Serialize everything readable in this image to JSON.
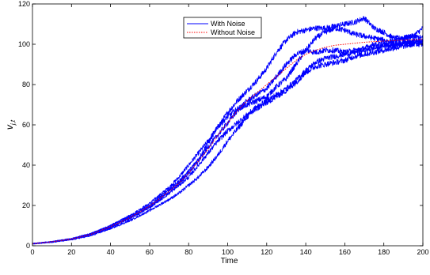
{
  "chart_data": {
    "type": "line",
    "xlabel": "Time",
    "ylabel": "v",
    "ylabel_sub": "j,t",
    "xlim": [
      0,
      200
    ],
    "ylim": [
      0,
      120
    ],
    "xticks": [
      0,
      20,
      40,
      60,
      80,
      100,
      120,
      140,
      160,
      180,
      200
    ],
    "yticks": [
      0,
      20,
      40,
      60,
      80,
      100,
      120
    ],
    "grid": false,
    "legend": {
      "placement": "top-center",
      "entries": [
        {
          "label": "With Noise",
          "color": "#0000ff",
          "style": "solid"
        },
        {
          "label": "Without Noise",
          "color": "#ff0000",
          "style": "dotted"
        }
      ]
    },
    "series": [
      {
        "group": "With Noise",
        "color": "#0000ff",
        "x": [
          0,
          10,
          20,
          30,
          40,
          50,
          60,
          70,
          75,
          80,
          85,
          90,
          95,
          100,
          105,
          110,
          115,
          120,
          125,
          130,
          135,
          140,
          145,
          150,
          155,
          160,
          165,
          170,
          175,
          180,
          185,
          190,
          195,
          200
        ],
        "y": [
          1,
          2,
          3.5,
          6,
          10,
          15,
          21,
          29,
          34,
          40,
          46,
          52,
          59,
          66,
          72,
          77,
          82,
          88,
          96,
          102,
          106,
          107,
          108,
          108,
          109,
          110,
          111,
          113,
          108,
          106,
          103,
          103,
          104,
          108
        ]
      },
      {
        "group": "With Noise",
        "color": "#0000ff",
        "x": [
          0,
          10,
          20,
          30,
          40,
          50,
          60,
          70,
          75,
          80,
          85,
          90,
          95,
          100,
          105,
          110,
          115,
          120,
          125,
          130,
          135,
          140,
          145,
          150,
          155,
          160,
          165,
          170,
          175,
          180,
          185,
          190,
          195,
          200
        ],
        "y": [
          1,
          2,
          3.5,
          6,
          10,
          14.5,
          20,
          28,
          32,
          37,
          43,
          51,
          59,
          64,
          68,
          70,
          72,
          74,
          79,
          83,
          90,
          97,
          103,
          106,
          108,
          107,
          105,
          104,
          103,
          102,
          101,
          103,
          104,
          103
        ]
      },
      {
        "group": "With Noise",
        "color": "#0000ff",
        "x": [
          0,
          10,
          20,
          30,
          40,
          50,
          60,
          70,
          75,
          80,
          85,
          90,
          95,
          100,
          105,
          110,
          115,
          120,
          125,
          130,
          135,
          140,
          145,
          150,
          155,
          160,
          165,
          170,
          175,
          180,
          185,
          190,
          195,
          200
        ],
        "y": [
          1,
          2,
          3.3,
          5.7,
          9.5,
          14,
          19.5,
          27,
          31,
          36,
          42,
          49,
          55,
          61,
          67,
          72,
          75,
          78,
          84,
          90,
          95,
          97,
          96,
          97,
          97,
          96,
          97,
          98,
          100,
          100,
          99,
          101,
          100,
          100
        ]
      },
      {
        "group": "With Noise",
        "color": "#0000ff",
        "x": [
          0,
          10,
          20,
          30,
          40,
          50,
          60,
          70,
          75,
          80,
          85,
          90,
          95,
          100,
          105,
          110,
          115,
          120,
          125,
          130,
          135,
          140,
          145,
          150,
          155,
          160,
          165,
          170,
          175,
          180,
          185,
          190,
          195,
          200
        ],
        "y": [
          1,
          2,
          3.2,
          5.5,
          9,
          13.5,
          19,
          26,
          30,
          34,
          40,
          46,
          52,
          57,
          61,
          65,
          69,
          72,
          75,
          78,
          82,
          87,
          91,
          93,
          94,
          95,
          96,
          97,
          98,
          99,
          100,
          101,
          102,
          101
        ]
      },
      {
        "group": "With Noise",
        "color": "#0000ff",
        "x": [
          0,
          10,
          20,
          30,
          40,
          50,
          60,
          70,
          75,
          80,
          85,
          90,
          95,
          100,
          105,
          110,
          115,
          120,
          125,
          130,
          135,
          140,
          145,
          150,
          155,
          160,
          165,
          170,
          175,
          180,
          185,
          190,
          195,
          200
        ],
        "y": [
          1,
          1.8,
          3,
          5,
          8.5,
          12.5,
          17.5,
          23,
          26,
          30,
          34,
          39,
          45,
          52,
          58,
          64,
          68,
          71,
          74,
          77,
          81,
          86,
          89,
          90,
          91,
          92,
          94,
          95,
          96,
          97,
          98,
          99,
          100,
          102
        ]
      },
      {
        "group": "Without Noise",
        "color": "#ff0000",
        "dash": true,
        "x": [
          0,
          10,
          20,
          30,
          40,
          50,
          60,
          70,
          75,
          80,
          85,
          90,
          95,
          100,
          105,
          110,
          115,
          120,
          125,
          130,
          135,
          140,
          145,
          150,
          155,
          160,
          165,
          170,
          175,
          180,
          185,
          190,
          195,
          200
        ],
        "y": [
          1,
          2,
          3.3,
          5.7,
          9.5,
          14,
          19.7,
          27,
          31,
          36,
          42,
          48,
          55,
          61,
          67,
          72,
          76,
          80,
          84,
          88,
          92,
          95,
          97,
          98.5,
          99.5,
          100,
          100.5,
          101,
          101.3,
          101.6,
          101.8,
          102,
          102.2,
          102.4
        ]
      }
    ]
  }
}
